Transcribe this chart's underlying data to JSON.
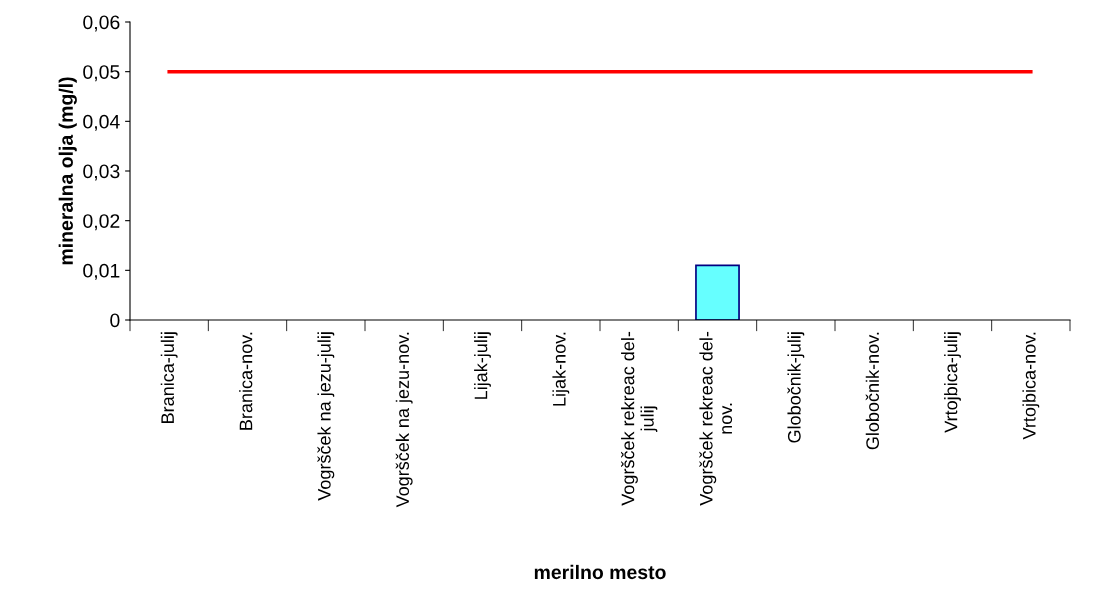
{
  "chart_data": {
    "type": "bar",
    "xlabel": "merilno mesto",
    "ylabel": "mineralna olja (mg/l)",
    "categories": [
      "Branica-julij",
      "Branica-nov.",
      "Vogršček na jezu-julij",
      "Vogršček na jezu-nov.",
      "Lijak-julij",
      "Lijak-nov.",
      "Vogršček rekreac del-\njulij",
      "Vogršček rekreac del-\nnov.",
      "Globočnik-julij",
      "Globočnik-nov.",
      "Vrtojbica-julij",
      "Vrtojbica-nov."
    ],
    "series": [
      {
        "color": "#66ffff",
        "values": [
          null,
          null,
          null,
          null,
          null,
          null,
          null,
          0.011,
          null,
          null,
          null,
          null
        ]
      },
      {
        "type": "line",
        "color": "#ff0000",
        "values": [
          0.05,
          0.05,
          0.05,
          0.05,
          0.05,
          0.05,
          0.05,
          0.05,
          0.05,
          0.05,
          0.05,
          0.05
        ]
      }
    ],
    "ylim": [
      0,
      0.06
    ],
    "yticks": [
      {
        "value": 0,
        "label": "0"
      },
      {
        "value": 0.01,
        "label": "0,01"
      },
      {
        "value": 0.02,
        "label": "0,02"
      },
      {
        "value": 0.03,
        "label": "0,03"
      },
      {
        "value": 0.04,
        "label": "0,04"
      },
      {
        "value": 0.05,
        "label": "0,05"
      },
      {
        "value": 0.06,
        "label": "0,06"
      }
    ],
    "grid": false,
    "legend": false
  }
}
